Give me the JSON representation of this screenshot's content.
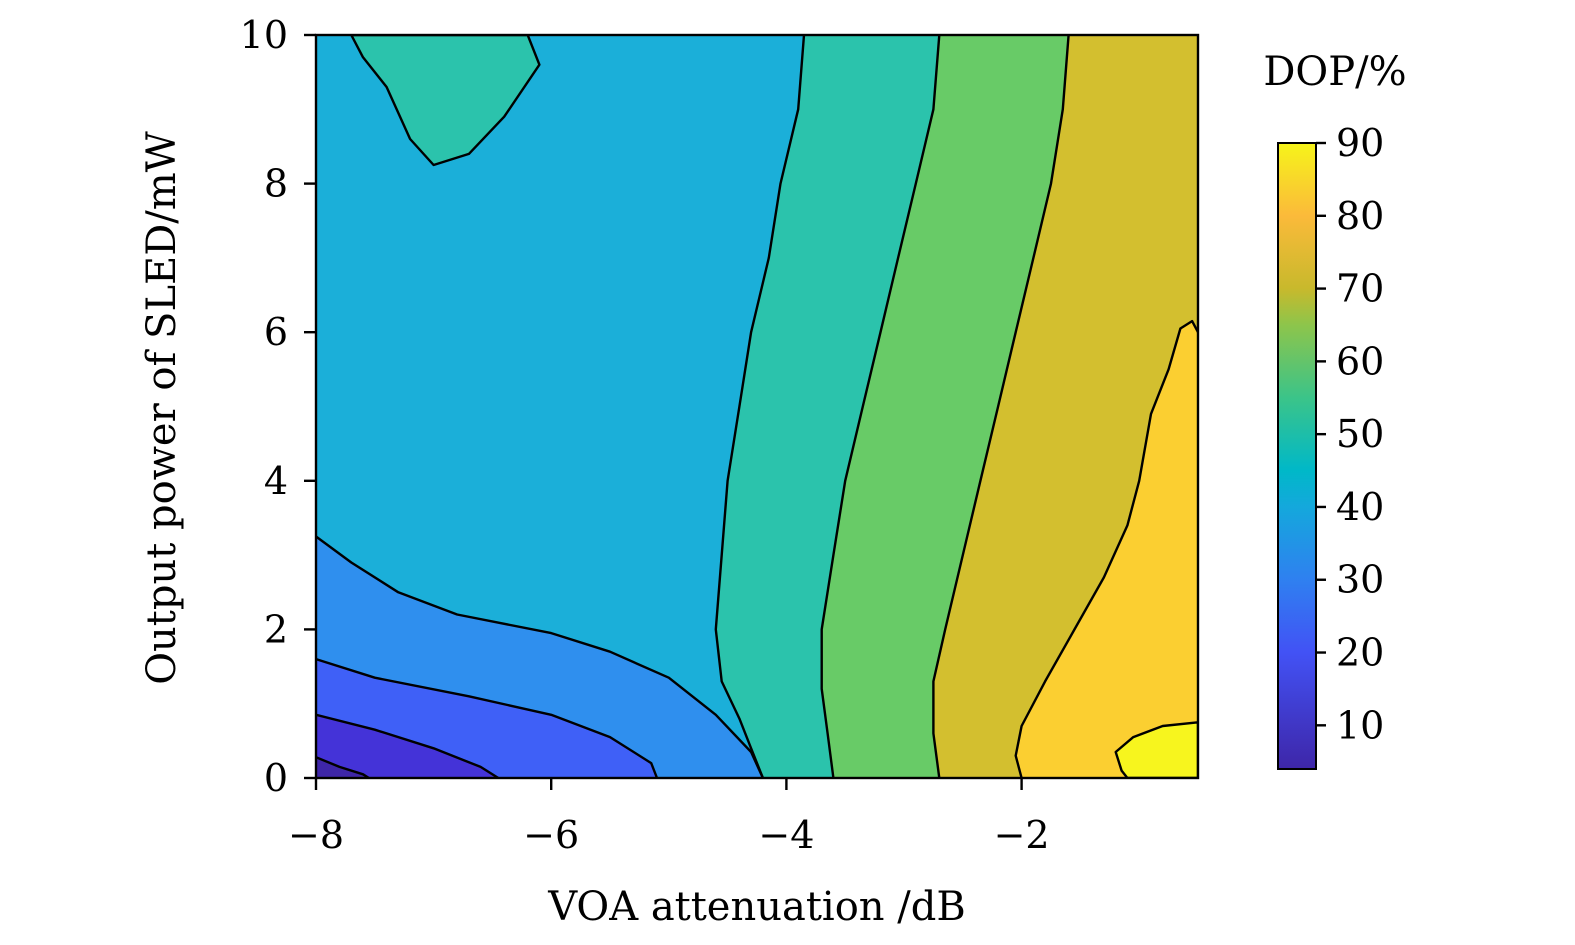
{
  "chart_data": {
    "type": "contour",
    "xlabel": "VOA attenuation /dB",
    "ylabel": "Output power of SLED/mW",
    "xlim": [
      -8,
      -0.5
    ],
    "ylim": [
      0,
      10
    ],
    "x_ticks": [
      -8,
      -6,
      -4,
      -2
    ],
    "x_tick_labels": [
      "−8",
      "−6",
      "−4",
      "−2"
    ],
    "y_ticks": [
      0,
      2,
      4,
      6,
      8,
      10
    ],
    "y_tick_labels": [
      "0",
      "2",
      "4",
      "6",
      "8",
      "10"
    ],
    "colorbar": {
      "title": "DOP/%",
      "range": [
        4,
        90
      ],
      "ticks": [
        10,
        20,
        30,
        40,
        50,
        60,
        70,
        80,
        90
      ],
      "tick_labels": [
        "10",
        "20",
        "30",
        "40",
        "50",
        "60",
        "70",
        "80",
        "90"
      ],
      "gradient_stops": [
        {
          "value": 4,
          "color": "#3e26a8"
        },
        {
          "value": 20,
          "color": "#4252f5"
        },
        {
          "value": 30,
          "color": "#2f80f0"
        },
        {
          "value": 40,
          "color": "#14a8dc"
        },
        {
          "value": 45,
          "color": "#00b8c8"
        },
        {
          "value": 55,
          "color": "#3bc489"
        },
        {
          "value": 65,
          "color": "#8dc54b"
        },
        {
          "value": 70,
          "color": "#c8b92c"
        },
        {
          "value": 80,
          "color": "#fbba3a"
        },
        {
          "value": 90,
          "color": "#f6f41a"
        }
      ]
    },
    "bands": [
      {
        "level": 42,
        "color": "#1bafd9"
      },
      {
        "level": 50,
        "color": "#2bc3ac"
      },
      {
        "level": 58,
        "color": "#68cb67"
      },
      {
        "level": 67,
        "color": "#d3bf2f"
      },
      {
        "level": 77,
        "color": "#fbcf31"
      },
      {
        "level": 86,
        "color": "#f7f51e"
      },
      {
        "level": 34,
        "color": "#2f8fee"
      },
      {
        "level": 23,
        "color": "#3f60f7"
      },
      {
        "level": 14,
        "color": "#4433d8"
      },
      {
        "level": 8,
        "color": "#3e26a8"
      },
      {
        "level": 50,
        "color": "#2bc3ac"
      }
    ],
    "contours": [
      {
        "level": 50,
        "region": "top-left island",
        "points": [
          [
            -7.7,
            10
          ],
          [
            -7.6,
            9.7
          ],
          [
            -7.4,
            9.3
          ],
          [
            -7.2,
            8.6
          ],
          [
            -7.0,
            8.25
          ],
          [
            -6.7,
            8.4
          ],
          [
            -6.4,
            8.9
          ],
          [
            -6.1,
            9.6
          ],
          [
            -6.2,
            10
          ]
        ]
      },
      {
        "level": 50,
        "points": [
          [
            -3.85,
            10
          ],
          [
            -3.9,
            9.0
          ],
          [
            -4.05,
            8.0
          ],
          [
            -4.15,
            7.0
          ],
          [
            -4.3,
            6.0
          ],
          [
            -4.4,
            5.0
          ],
          [
            -4.5,
            4.0
          ],
          [
            -4.55,
            3.0
          ],
          [
            -4.6,
            2.0
          ],
          [
            -4.55,
            1.3
          ],
          [
            -4.4,
            0.8
          ],
          [
            -4.3,
            0.4
          ],
          [
            -4.2,
            0
          ]
        ]
      },
      {
        "level": 60,
        "points": [
          [
            -2.7,
            10
          ],
          [
            -2.75,
            9.0
          ],
          [
            -2.9,
            8.0
          ],
          [
            -3.05,
            7.0
          ],
          [
            -3.2,
            6.0
          ],
          [
            -3.35,
            5.0
          ],
          [
            -3.5,
            4.0
          ],
          [
            -3.6,
            3.0
          ],
          [
            -3.7,
            2.0
          ],
          [
            -3.7,
            1.2
          ],
          [
            -3.65,
            0.6
          ],
          [
            -3.6,
            0
          ]
        ]
      },
      {
        "level": 70,
        "points": [
          [
            -1.6,
            10
          ],
          [
            -1.65,
            9.0
          ],
          [
            -1.75,
            8.0
          ],
          [
            -1.9,
            7.0
          ],
          [
            -2.05,
            6.0
          ],
          [
            -2.2,
            5.0
          ],
          [
            -2.35,
            4.0
          ],
          [
            -2.5,
            3.0
          ],
          [
            -2.65,
            2.0
          ],
          [
            -2.75,
            1.3
          ],
          [
            -2.75,
            0.6
          ],
          [
            -2.7,
            0
          ]
        ]
      },
      {
        "level": 80,
        "points": [
          [
            -0.5,
            6.0
          ],
          [
            -0.55,
            6.15
          ],
          [
            -0.65,
            6.05
          ],
          [
            -0.75,
            5.5
          ],
          [
            -0.9,
            4.9
          ],
          [
            -1.0,
            4.0
          ],
          [
            -1.1,
            3.4
          ],
          [
            -1.3,
            2.7
          ],
          [
            -1.55,
            2.0
          ],
          [
            -1.8,
            1.3
          ],
          [
            -2.0,
            0.7
          ],
          [
            -2.05,
            0.3
          ],
          [
            -2.0,
            0
          ]
        ]
      },
      {
        "level": 90,
        "points": [
          [
            -0.5,
            0.75
          ],
          [
            -0.8,
            0.7
          ],
          [
            -1.05,
            0.55
          ],
          [
            -1.2,
            0.35
          ],
          [
            -1.15,
            0.1
          ],
          [
            -1.1,
            0.0
          ],
          [
            -0.5,
            0.0
          ]
        ]
      },
      {
        "level": 40,
        "points": [
          [
            -8,
            3.25
          ],
          [
            -7.7,
            2.9
          ],
          [
            -7.3,
            2.5
          ],
          [
            -6.8,
            2.2
          ],
          [
            -6.0,
            1.95
          ],
          [
            -5.5,
            1.7
          ],
          [
            -5.0,
            1.35
          ],
          [
            -4.6,
            0.85
          ],
          [
            -4.3,
            0.35
          ],
          [
            -4.2,
            0
          ]
        ]
      },
      {
        "level": 30,
        "points": [
          [
            -8,
            1.6
          ],
          [
            -7.5,
            1.35
          ],
          [
            -6.7,
            1.1
          ],
          [
            -6.0,
            0.85
          ],
          [
            -5.5,
            0.55
          ],
          [
            -5.15,
            0.2
          ],
          [
            -5.1,
            0
          ]
        ]
      },
      {
        "level": 20,
        "points": [
          [
            -8,
            0.85
          ],
          [
            -7.5,
            0.65
          ],
          [
            -7.0,
            0.4
          ],
          [
            -6.6,
            0.15
          ],
          [
            -6.45,
            0
          ]
        ]
      },
      {
        "level": 10,
        "points": [
          [
            -8,
            0.28
          ],
          [
            -7.8,
            0.15
          ],
          [
            -7.6,
            0.05
          ],
          [
            -7.55,
            0
          ]
        ]
      }
    ]
  }
}
